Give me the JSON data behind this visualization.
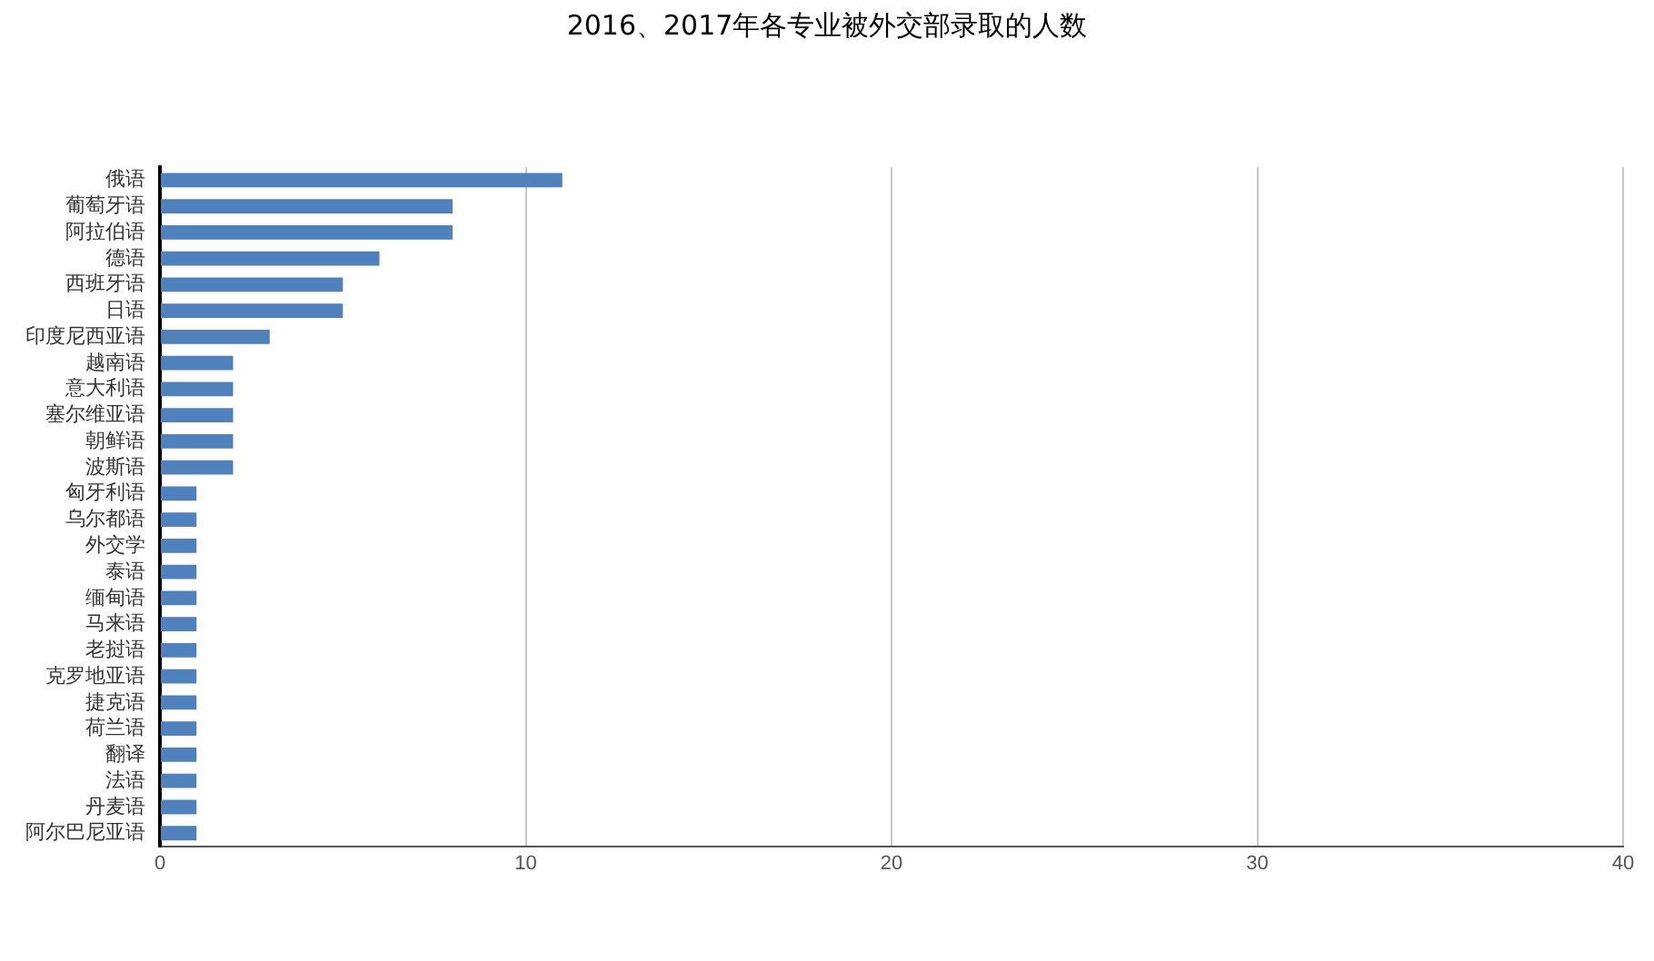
{
  "chart_data": {
    "type": "bar",
    "orientation": "horizontal",
    "title": "2016、2017年各专业被外交部录取的人数",
    "categories": [
      "俄语",
      "葡萄牙语",
      "阿拉伯语",
      "德语",
      "西班牙语",
      "日语",
      "印度尼西亚语",
      "越南语",
      "意大利语",
      "塞尔维亚语",
      "朝鲜语",
      "波斯语",
      "匈牙利语",
      "乌尔都语",
      "外交学",
      "泰语",
      "缅甸语",
      "马来语",
      "老挝语",
      "克罗地亚语",
      "捷克语",
      "荷兰语",
      "翻译",
      "法语",
      "丹麦语",
      "阿尔巴尼亚语"
    ],
    "values": [
      11,
      8,
      8,
      6,
      5,
      5,
      3,
      2,
      2,
      2,
      2,
      2,
      1,
      1,
      1,
      1,
      1,
      1,
      1,
      1,
      1,
      1,
      1,
      1,
      1,
      1
    ],
    "color": "#4f81bd",
    "xlim": [
      0,
      40
    ],
    "xticks": [
      0,
      10,
      20,
      30,
      40
    ],
    "grid": "x",
    "legend": false
  }
}
